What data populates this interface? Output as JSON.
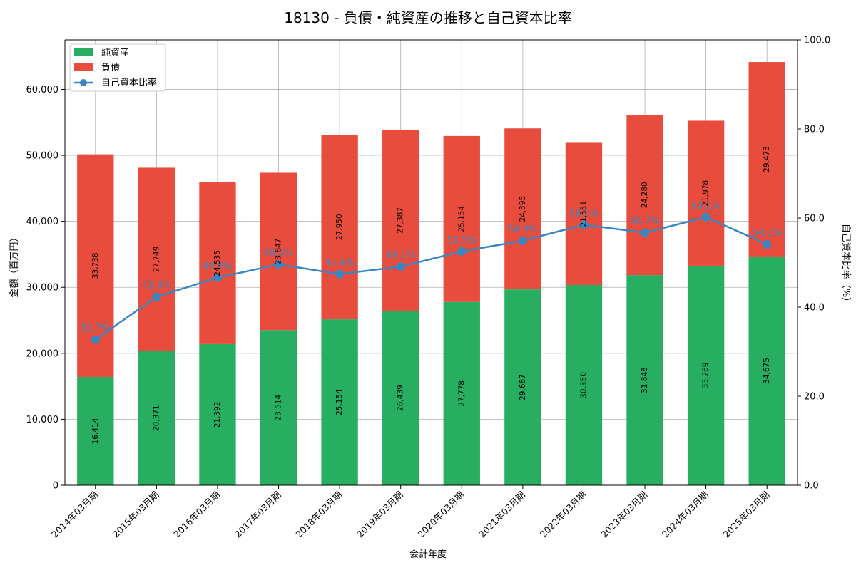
{
  "chart_data": {
    "type": "bar",
    "stacked": true,
    "title": "18130 - 負債・純資産の推移と自己資本比率",
    "xlabel": "会計年度",
    "ylabel": "金額（百万円）",
    "y2label": "自己資本比率（%）",
    "ylim": [
      0,
      67500
    ],
    "y2lim": [
      0,
      100
    ],
    "yticks": [
      0,
      10000,
      20000,
      30000,
      40000,
      50000,
      60000
    ],
    "yticks_labels": [
      "0",
      "10,000",
      "20,000",
      "30,000",
      "40,000",
      "50,000",
      "60,000"
    ],
    "y2ticks": [
      0,
      20,
      40,
      60,
      80,
      100
    ],
    "y2ticks_labels": [
      "0.0",
      "20.0",
      "40.0",
      "60.0",
      "80.0",
      "100.0"
    ],
    "grid": true,
    "legend_position": "top-left",
    "categories": [
      "2014年03月期",
      "2015年03月期",
      "2016年03月期",
      "2017年03月期",
      "2018年03月期",
      "2019年03月期",
      "2020年03月期",
      "2021年03月期",
      "2022年03月期",
      "2023年03月期",
      "2024年03月期",
      "2025年03月期"
    ],
    "series": [
      {
        "name": "純資産",
        "kind": "bar",
        "color": "#27ae60",
        "values": [
          16414,
          20371,
          21392,
          23514,
          25154,
          26439,
          27778,
          29687,
          30350,
          31848,
          33269,
          34675
        ],
        "labels": [
          "16,414",
          "20,371",
          "21,392",
          "23,514",
          "25,154",
          "26,439",
          "27,778",
          "29,687",
          "30,350",
          "31,848",
          "33,269",
          "34,675"
        ]
      },
      {
        "name": "負債",
        "kind": "bar",
        "color": "#e74c3c",
        "values": [
          33738,
          27749,
          24535,
          23847,
          27950,
          27387,
          25154,
          24395,
          21551,
          24280,
          21978,
          29473
        ],
        "labels": [
          "33,738",
          "27,749",
          "24,535",
          "23,847",
          "27,950",
          "27,387",
          "25,154",
          "24,395",
          "21,551",
          "24,280",
          "21,978",
          "29,473"
        ]
      },
      {
        "name": "自己資本比率",
        "kind": "line",
        "axis": "right",
        "color": "#3a86c0",
        "values": [
          32.7,
          42.3,
          46.6,
          49.6,
          47.4,
          49.1,
          52.5,
          54.9,
          58.5,
          56.7,
          60.2,
          54.1
        ],
        "labels": [
          "32.7%",
          "42.3%",
          "46.6%",
          "49.6%",
          "47.4%",
          "49.1%",
          "52.5%",
          "54.9%",
          "58.5%",
          "56.7%",
          "60.2%",
          "54.1%"
        ]
      }
    ]
  }
}
